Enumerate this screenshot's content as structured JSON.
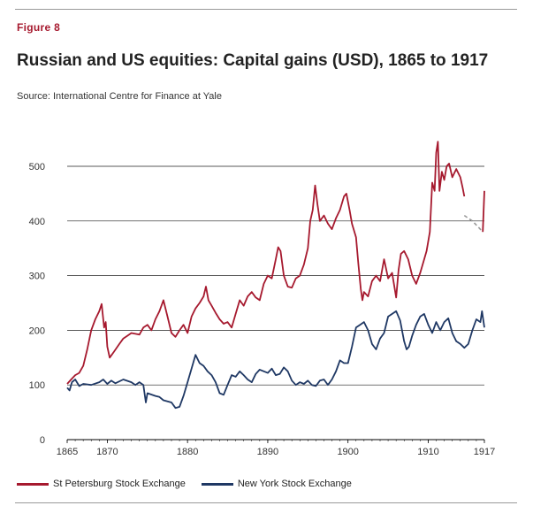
{
  "figure_label": "Figure 8",
  "title": "Russian and US equities: Capital gains (USD), 1865 to 1917",
  "source": "Source: International Centre for Finance at Yale",
  "colors": {
    "russia": "#a6192e",
    "us": "#1f3864",
    "projection": "#999999",
    "grid": "#000000"
  },
  "chart_data": {
    "type": "line",
    "title": "Russian and US equities: Capital gains (USD), 1865 to 1917",
    "xlabel": "",
    "ylabel": "",
    "xlim": [
      1865,
      1917
    ],
    "ylim": [
      0,
      500
    ],
    "x_ticks": [
      1865,
      1870,
      1880,
      1890,
      1900,
      1910,
      1917
    ],
    "y_ticks": [
      0,
      100,
      200,
      300,
      400,
      500
    ],
    "grid": "horizontal",
    "legend_position": "bottom-left",
    "series": [
      {
        "name": "St Petersburg Stock Exchange",
        "color": "#a6192e",
        "points": [
          [
            1865.0,
            102
          ],
          [
            1865.5,
            110
          ],
          [
            1866.0,
            118
          ],
          [
            1866.5,
            122
          ],
          [
            1867.0,
            135
          ],
          [
            1867.5,
            165
          ],
          [
            1868.0,
            200
          ],
          [
            1868.5,
            220
          ],
          [
            1869.0,
            235
          ],
          [
            1869.3,
            248
          ],
          [
            1869.6,
            205
          ],
          [
            1869.8,
            215
          ],
          [
            1870.0,
            170
          ],
          [
            1870.3,
            150
          ],
          [
            1870.8,
            160
          ],
          [
            1871.5,
            175
          ],
          [
            1872.0,
            185
          ],
          [
            1872.5,
            190
          ],
          [
            1873.0,
            195
          ],
          [
            1874.0,
            192
          ],
          [
            1874.5,
            205
          ],
          [
            1875.0,
            210
          ],
          [
            1875.5,
            200
          ],
          [
            1876.0,
            220
          ],
          [
            1876.5,
            235
          ],
          [
            1877.0,
            255
          ],
          [
            1877.5,
            225
          ],
          [
            1878.0,
            195
          ],
          [
            1878.5,
            188
          ],
          [
            1879.0,
            200
          ],
          [
            1879.5,
            210
          ],
          [
            1880.0,
            195
          ],
          [
            1880.5,
            225
          ],
          [
            1881.0,
            240
          ],
          [
            1881.5,
            250
          ],
          [
            1882.0,
            262
          ],
          [
            1882.3,
            280
          ],
          [
            1882.6,
            255
          ],
          [
            1883.0,
            245
          ],
          [
            1883.5,
            232
          ],
          [
            1884.0,
            220
          ],
          [
            1884.5,
            212
          ],
          [
            1885.0,
            215
          ],
          [
            1885.5,
            205
          ],
          [
            1886.0,
            230
          ],
          [
            1886.5,
            255
          ],
          [
            1887.0,
            245
          ],
          [
            1887.5,
            262
          ],
          [
            1888.0,
            270
          ],
          [
            1888.5,
            260
          ],
          [
            1889.0,
            255
          ],
          [
            1889.5,
            285
          ],
          [
            1890.0,
            300
          ],
          [
            1890.5,
            295
          ],
          [
            1891.0,
            330
          ],
          [
            1891.3,
            352
          ],
          [
            1891.6,
            345
          ],
          [
            1892.0,
            300
          ],
          [
            1892.5,
            280
          ],
          [
            1893.0,
            278
          ],
          [
            1893.5,
            295
          ],
          [
            1894.0,
            300
          ],
          [
            1894.5,
            320
          ],
          [
            1895.0,
            350
          ],
          [
            1895.3,
            400
          ],
          [
            1895.6,
            420
          ],
          [
            1895.9,
            465
          ],
          [
            1896.2,
            430
          ],
          [
            1896.5,
            400
          ],
          [
            1897.0,
            410
          ],
          [
            1897.5,
            395
          ],
          [
            1898.0,
            385
          ],
          [
            1898.5,
            405
          ],
          [
            1899.0,
            420
          ],
          [
            1899.5,
            445
          ],
          [
            1899.8,
            450
          ],
          [
            1900.2,
            420
          ],
          [
            1900.5,
            395
          ],
          [
            1901.0,
            370
          ],
          [
            1901.3,
            320
          ],
          [
            1901.6,
            275
          ],
          [
            1901.8,
            255
          ],
          [
            1902.0,
            270
          ],
          [
            1902.5,
            262
          ],
          [
            1903.0,
            290
          ],
          [
            1903.5,
            300
          ],
          [
            1904.0,
            290
          ],
          [
            1904.5,
            330
          ],
          [
            1905.0,
            295
          ],
          [
            1905.5,
            305
          ],
          [
            1906.0,
            260
          ],
          [
            1906.3,
            310
          ],
          [
            1906.6,
            340
          ],
          [
            1907.0,
            345
          ],
          [
            1907.5,
            330
          ],
          [
            1908.0,
            300
          ],
          [
            1908.5,
            285
          ],
          [
            1909.0,
            305
          ],
          [
            1909.5,
            330
          ],
          [
            1909.8,
            345
          ],
          [
            1910.2,
            380
          ],
          [
            1910.5,
            470
          ],
          [
            1910.8,
            455
          ],
          [
            1911.0,
            525
          ],
          [
            1911.2,
            545
          ],
          [
            1911.4,
            455
          ],
          [
            1911.7,
            490
          ],
          [
            1912.0,
            475
          ],
          [
            1912.3,
            500
          ],
          [
            1912.6,
            505
          ],
          [
            1913.0,
            480
          ],
          [
            1913.5,
            495
          ],
          [
            1914.0,
            480
          ],
          [
            1914.3,
            460
          ],
          [
            1914.5,
            445
          ]
        ]
      },
      {
        "name": "St Petersburg Stock Exchange (final segment)",
        "color": "#a6192e",
        "points": [
          [
            1916.8,
            380
          ],
          [
            1917.0,
            455
          ]
        ]
      },
      {
        "name": "",
        "color": "#999999",
        "dashed": true,
        "points": [
          [
            1914.5,
            410
          ],
          [
            1915.5,
            400
          ],
          [
            1916.3,
            388
          ],
          [
            1916.8,
            380
          ]
        ]
      },
      {
        "name": "New York Stock Exchange",
        "color": "#1f3864",
        "points": [
          [
            1865.0,
            95
          ],
          [
            1865.3,
            90
          ],
          [
            1865.6,
            105
          ],
          [
            1866.0,
            110
          ],
          [
            1866.5,
            98
          ],
          [
            1867.0,
            102
          ],
          [
            1868.0,
            100
          ],
          [
            1869.0,
            105
          ],
          [
            1869.5,
            110
          ],
          [
            1870.0,
            102
          ],
          [
            1870.5,
            108
          ],
          [
            1871.0,
            103
          ],
          [
            1872.0,
            110
          ],
          [
            1873.0,
            105
          ],
          [
            1873.5,
            100
          ],
          [
            1874.0,
            105
          ],
          [
            1874.5,
            100
          ],
          [
            1874.8,
            68
          ],
          [
            1875.0,
            85
          ],
          [
            1876.0,
            80
          ],
          [
            1876.5,
            78
          ],
          [
            1877.0,
            72
          ],
          [
            1878.0,
            68
          ],
          [
            1878.5,
            58
          ],
          [
            1879.0,
            60
          ],
          [
            1879.5,
            80
          ],
          [
            1880.0,
            105
          ],
          [
            1880.5,
            130
          ],
          [
            1881.0,
            155
          ],
          [
            1881.5,
            140
          ],
          [
            1882.0,
            135
          ],
          [
            1882.5,
            125
          ],
          [
            1883.0,
            118
          ],
          [
            1883.5,
            105
          ],
          [
            1884.0,
            85
          ],
          [
            1884.5,
            82
          ],
          [
            1885.0,
            100
          ],
          [
            1885.5,
            118
          ],
          [
            1886.0,
            115
          ],
          [
            1886.5,
            125
          ],
          [
            1887.0,
            118
          ],
          [
            1887.5,
            110
          ],
          [
            1888.0,
            105
          ],
          [
            1888.5,
            120
          ],
          [
            1889.0,
            128
          ],
          [
            1890.0,
            122
          ],
          [
            1890.5,
            130
          ],
          [
            1891.0,
            118
          ],
          [
            1891.5,
            120
          ],
          [
            1892.0,
            132
          ],
          [
            1892.5,
            125
          ],
          [
            1893.0,
            108
          ],
          [
            1893.5,
            100
          ],
          [
            1894.0,
            105
          ],
          [
            1894.5,
            102
          ],
          [
            1895.0,
            108
          ],
          [
            1895.5,
            100
          ],
          [
            1896.0,
            98
          ],
          [
            1896.5,
            108
          ],
          [
            1897.0,
            110
          ],
          [
            1897.5,
            100
          ],
          [
            1898.0,
            110
          ],
          [
            1898.5,
            125
          ],
          [
            1899.0,
            145
          ],
          [
            1899.5,
            140
          ],
          [
            1900.0,
            140
          ],
          [
            1900.5,
            170
          ],
          [
            1901.0,
            205
          ],
          [
            1901.5,
            210
          ],
          [
            1902.0,
            215
          ],
          [
            1902.5,
            200
          ],
          [
            1903.0,
            175
          ],
          [
            1903.5,
            165
          ],
          [
            1904.0,
            185
          ],
          [
            1904.5,
            195
          ],
          [
            1905.0,
            225
          ],
          [
            1905.5,
            230
          ],
          [
            1906.0,
            235
          ],
          [
            1906.5,
            218
          ],
          [
            1907.0,
            180
          ],
          [
            1907.3,
            165
          ],
          [
            1907.6,
            170
          ],
          [
            1908.0,
            190
          ],
          [
            1908.5,
            210
          ],
          [
            1909.0,
            225
          ],
          [
            1909.5,
            230
          ],
          [
            1910.0,
            210
          ],
          [
            1910.5,
            195
          ],
          [
            1911.0,
            215
          ],
          [
            1911.5,
            200
          ],
          [
            1912.0,
            215
          ],
          [
            1912.5,
            222
          ],
          [
            1913.0,
            195
          ],
          [
            1913.5,
            180
          ],
          [
            1914.0,
            175
          ],
          [
            1914.5,
            168
          ],
          [
            1915.0,
            175
          ],
          [
            1915.5,
            200
          ],
          [
            1916.0,
            220
          ],
          [
            1916.5,
            215
          ],
          [
            1916.7,
            235
          ],
          [
            1917.0,
            205
          ]
        ]
      }
    ]
  },
  "legend": [
    {
      "label": "St Petersburg Stock Exchange",
      "color": "#a6192e"
    },
    {
      "label": "New York Stock Exchange",
      "color": "#1f3864"
    }
  ]
}
